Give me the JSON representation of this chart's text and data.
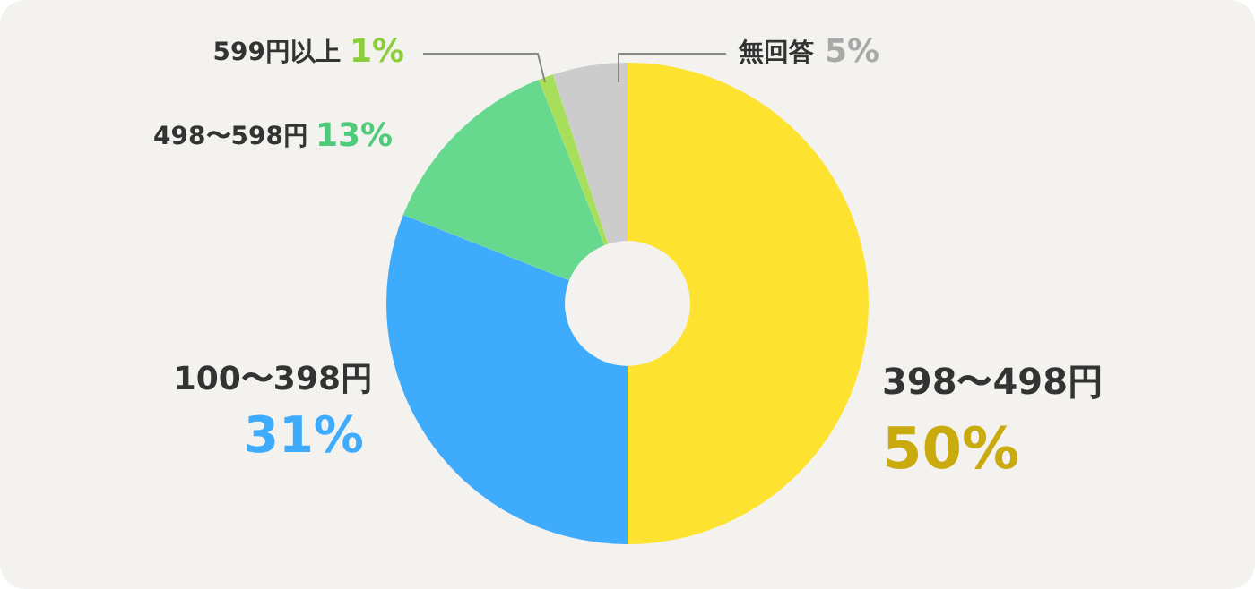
{
  "chart_data": {
    "type": "donut",
    "categories": [
      "398〜498円",
      "100〜398円",
      "498〜598円",
      "599円以上",
      "無回答"
    ],
    "values": [
      50,
      31,
      13,
      1,
      5
    ],
    "colors": [
      "#fde330",
      "#3fabfd",
      "#66d98f",
      "#a7df5a",
      "#cccccc"
    ],
    "value_labels": [
      "50%",
      "31%",
      "13%",
      "1%",
      "5%"
    ],
    "legend": false
  }
}
